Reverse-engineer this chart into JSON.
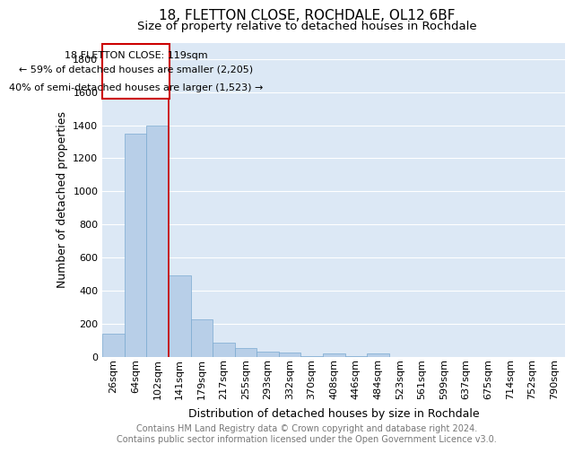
{
  "title1": "18, FLETTON CLOSE, ROCHDALE, OL12 6BF",
  "title2": "Size of property relative to detached houses in Rochdale",
  "xlabel": "Distribution of detached houses by size in Rochdale",
  "ylabel": "Number of detached properties",
  "footer": "Contains HM Land Registry data © Crown copyright and database right 2024.\nContains public sector information licensed under the Open Government Licence v3.0.",
  "bar_labels": [
    "26sqm",
    "64sqm",
    "102sqm",
    "141sqm",
    "179sqm",
    "217sqm",
    "255sqm",
    "293sqm",
    "332sqm",
    "370sqm",
    "408sqm",
    "446sqm",
    "484sqm",
    "523sqm",
    "561sqm",
    "599sqm",
    "637sqm",
    "675sqm",
    "714sqm",
    "752sqm",
    "790sqm"
  ],
  "bar_values": [
    140,
    1350,
    1400,
    490,
    225,
    85,
    50,
    30,
    22,
    5,
    18,
    5,
    18,
    0,
    0,
    0,
    0,
    0,
    0,
    0,
    0
  ],
  "bar_color": "#b8cfe8",
  "bar_edge_color": "#7aaad0",
  "bg_color": "#dce8f5",
  "grid_color": "#ffffff",
  "annotation_box_color": "#cc0000",
  "annotation_line1": "18 FLETTON CLOSE: 119sqm",
  "annotation_line2": "← 59% of detached houses are smaller (2,205)",
  "annotation_line3": "40% of semi-detached houses are larger (1,523) →",
  "ylim": [
    0,
    1900
  ],
  "yticks": [
    0,
    200,
    400,
    600,
    800,
    1000,
    1200,
    1400,
    1600,
    1800
  ],
  "title1_fontsize": 11,
  "title2_fontsize": 9.5,
  "xlabel_fontsize": 9,
  "ylabel_fontsize": 9,
  "footer_fontsize": 7,
  "tick_labelsize": 8,
  "annot_fontsize": 8
}
